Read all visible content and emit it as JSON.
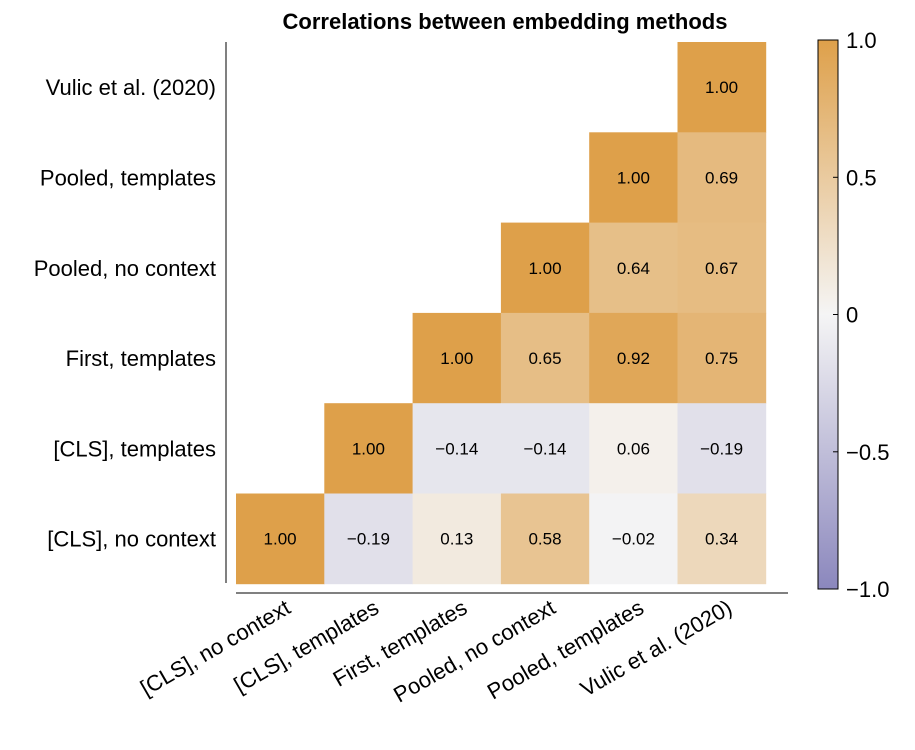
{
  "chart_data": {
    "type": "heatmap",
    "title": "Correlations between embedding methods",
    "row_labels": [
      "Vulic et al. (2020)",
      "Pooled, templates",
      "Pooled, no context",
      "First, templates",
      "[CLS], templates",
      "[CLS], no context"
    ],
    "col_labels": [
      "[CLS], no context",
      "[CLS], templates",
      "First, templates",
      "Pooled, no context",
      "Pooled, templates",
      "Vulic et al. (2020)"
    ],
    "values": [
      [
        null,
        null,
        null,
        null,
        null,
        1.0
      ],
      [
        null,
        null,
        null,
        null,
        1.0,
        0.69
      ],
      [
        null,
        null,
        null,
        1.0,
        0.64,
        0.67
      ],
      [
        null,
        null,
        1.0,
        0.65,
        0.92,
        0.75
      ],
      [
        null,
        1.0,
        -0.14,
        -0.14,
        0.06,
        -0.19
      ],
      [
        1.0,
        -0.19,
        0.13,
        0.58,
        -0.02,
        0.34
      ]
    ],
    "value_labels": [
      [
        "",
        "",
        "",
        "",
        "",
        "1.00"
      ],
      [
        "",
        "",
        "",
        "",
        "1.00",
        "0.69"
      ],
      [
        "",
        "",
        "",
        "1.00",
        "0.64",
        "0.67"
      ],
      [
        "",
        "",
        "1.00",
        "0.65",
        "0.92",
        "0.75"
      ],
      [
        "",
        "1.00",
        "−0.14",
        "−0.14",
        "0.06",
        "−0.19"
      ],
      [
        "1.00",
        "−0.19",
        "0.13",
        "0.58",
        "−0.02",
        "0.34"
      ]
    ],
    "colorbar": {
      "range": [
        -1.0,
        1.0
      ],
      "ticks": [
        1.0,
        0.5,
        0,
        -0.5,
        -1.0
      ],
      "tick_labels": [
        "1.0",
        "0.5",
        "0",
        "−0.5",
        "−1.0"
      ],
      "low_color": "#8b87bd",
      "mid_color": "#f5f5f5",
      "high_color": "#dea04a"
    },
    "legend": "right"
  }
}
